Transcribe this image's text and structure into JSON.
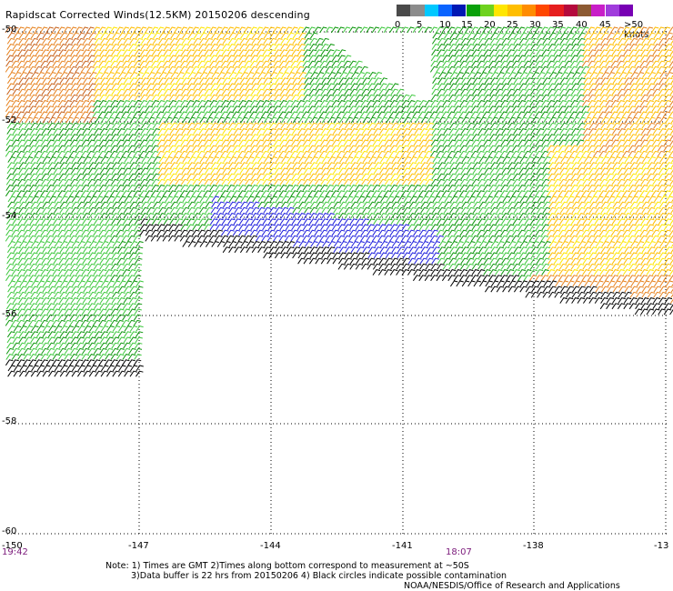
{
  "title": "Rapidscat Corrected Winds(12.5KM) 20150206 descending",
  "legend": {
    "ticks": [
      "0",
      "5",
      "10",
      "15",
      "20",
      "25",
      "30",
      "35",
      "40",
      "45",
      ">50 knots"
    ],
    "colors": [
      "#4a4a4a",
      "#8c8c8c",
      "#00c8ff",
      "#0a64ff",
      "#0018b4",
      "#0aa00a",
      "#6ed21e",
      "#ffe600",
      "#ffbe00",
      "#ff8c00",
      "#ff4600",
      "#e61e1e",
      "#b40a3c",
      "#8c5a32",
      "#c81ec8",
      "#a03cdc",
      "#7800b4"
    ]
  },
  "map": {
    "lat_labels": [
      "-50",
      "-52",
      "-54",
      "-56",
      "-58",
      "-60"
    ],
    "lon_labels": [
      "-150",
      "-147",
      "-144",
      "-141",
      "-138",
      "-13"
    ],
    "time_labels": [
      "19:42",
      "18:07"
    ]
  },
  "wind_speed_colors": {
    "black": "#000000",
    "blue": "#1e1edc",
    "green_dark": "#0a960a",
    "green_light": "#3cc83c",
    "yellow": "#ffe600",
    "gold": "#ffbe00",
    "orange": "#e6821e",
    "dark_orange": "#c8641e"
  },
  "notes": {
    "line1": "Note: 1) Times are GMT 2)Times along bottom correspond to measurement at ~50S",
    "line2": "3)Data buffer is 22 hrs from 20150206 4) Black circles indicate possible contamination",
    "line3": "NOAA/NESDIS/Office of Research and Applications"
  }
}
